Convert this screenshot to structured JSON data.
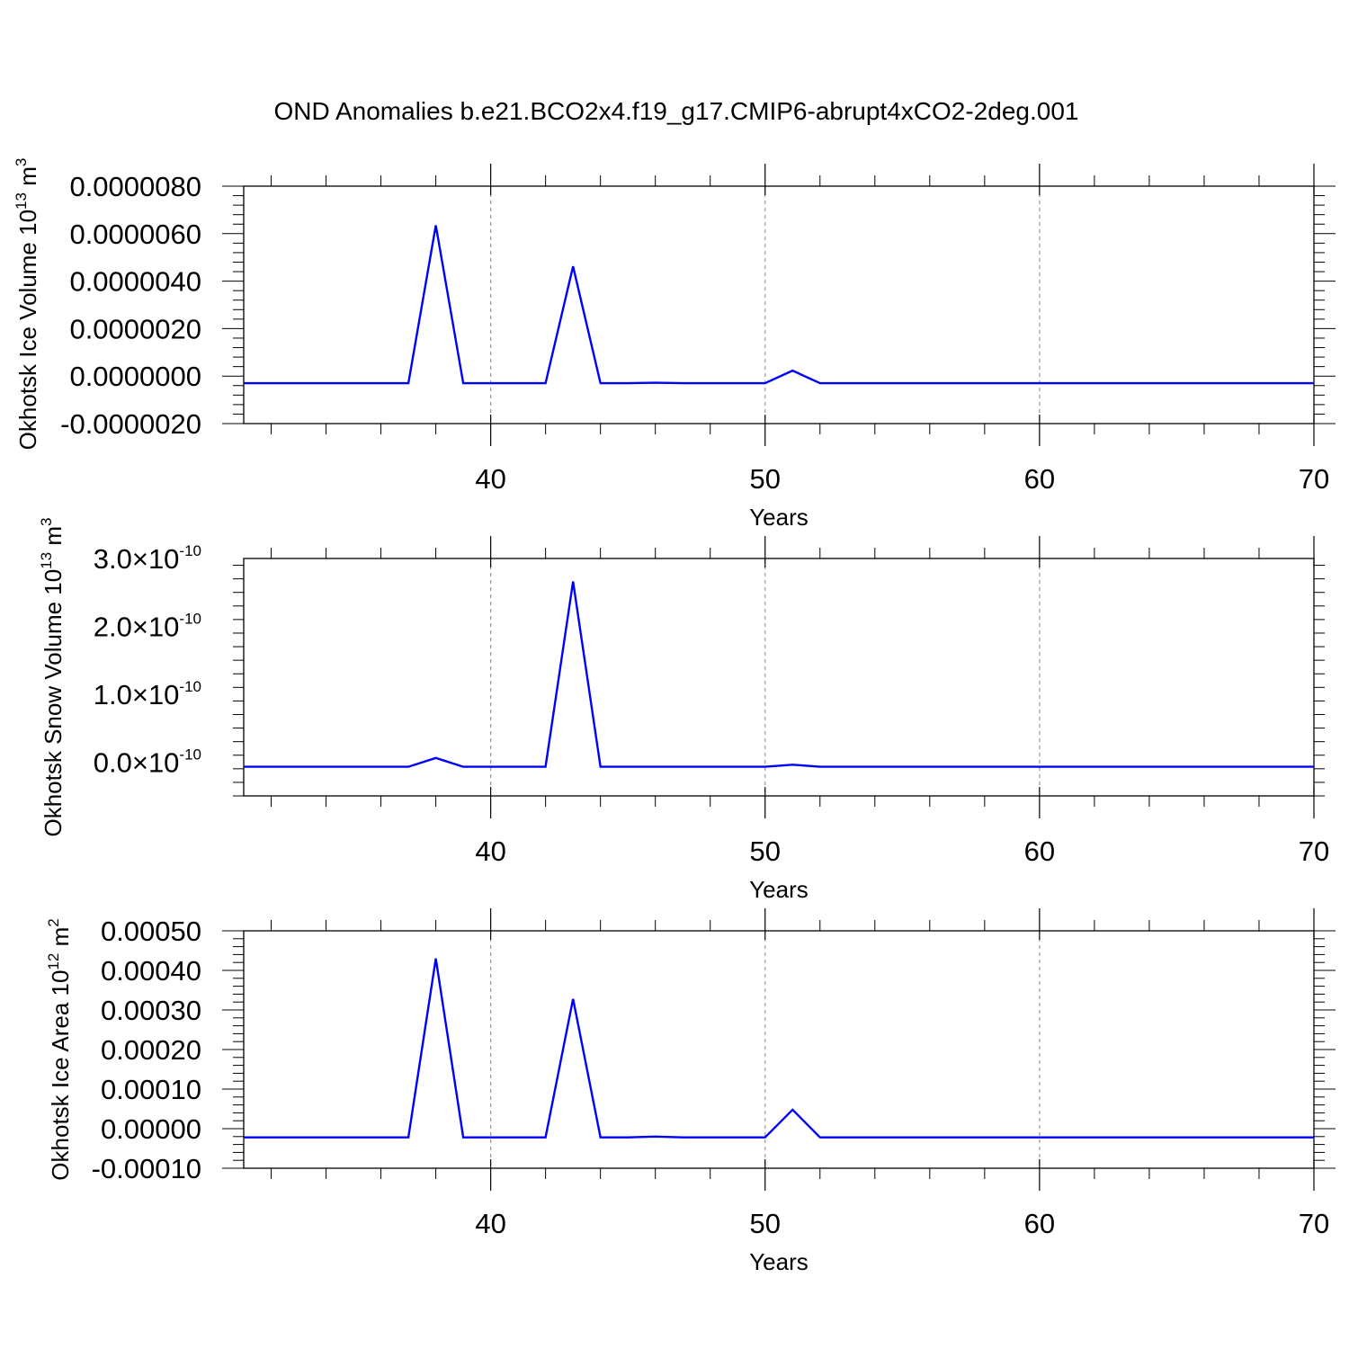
{
  "title": "OND Anomalies b.e21.BCO2x4.f19_g17.CMIP6-abrupt4xCO2-2deg.001",
  "colors": {
    "line": "#0000ff",
    "grid": "#999999",
    "frame": "#000000"
  },
  "chart_data": [
    {
      "type": "line",
      "xlabel": "Years",
      "ylabel": {
        "prefix": "Okhotsk Ice Volume 10",
        "exponent": "13",
        "unit": " m",
        "unit_exponent": "3"
      },
      "xlim": [
        31,
        70
      ],
      "ylim": [
        -2e-06,
        8e-06
      ],
      "x_ticks": [
        40,
        50,
        60,
        70
      ],
      "x_tick_labels": [
        "40",
        "50",
        "60",
        "70"
      ],
      "y_ticks": [
        -2e-06,
        0,
        2e-06,
        4e-06,
        6e-06,
        8e-06
      ],
      "y_tick_labels": [
        "-0.0000020",
        "0.0000000",
        "0.0000020",
        "0.0000040",
        "0.0000060",
        "0.0000080"
      ],
      "grid": "vertical dashed at major x ticks",
      "x": [
        31,
        32,
        33,
        34,
        35,
        36,
        37,
        38,
        39,
        40,
        41,
        42,
        43,
        44,
        45,
        46,
        47,
        48,
        49,
        50,
        51,
        52,
        53,
        54,
        55,
        56,
        57,
        58,
        59,
        60,
        61,
        62,
        63,
        64,
        65,
        66,
        67,
        68,
        69,
        70
      ],
      "values": [
        -3e-07,
        -3e-07,
        -3e-07,
        -3e-07,
        -3e-07,
        -3e-07,
        -3e-07,
        6.35e-06,
        -3e-07,
        -3e-07,
        -3e-07,
        -3e-07,
        4.62e-06,
        -3e-07,
        -3e-07,
        -2.8e-07,
        -3e-07,
        -3e-07,
        -3e-07,
        -3e-07,
        2.3e-07,
        -3e-07,
        -3e-07,
        -3e-07,
        -3e-07,
        -3e-07,
        -3e-07,
        -3e-07,
        -3e-07,
        -3e-07,
        -3e-07,
        -3e-07,
        -3e-07,
        -3e-07,
        -3e-07,
        -3e-07,
        -3e-07,
        -3e-07,
        -3e-07,
        -3e-07
      ]
    },
    {
      "type": "line",
      "xlabel": "Years",
      "ylabel": {
        "prefix": "Okhotsk Snow Volume 10",
        "exponent": "13",
        "unit": " m",
        "unit_exponent": "3"
      },
      "xlim": [
        31,
        70
      ],
      "ylim": [
        -5e-11,
        3e-10
      ],
      "x_ticks": [
        40,
        50,
        60,
        70
      ],
      "x_tick_labels": [
        "40",
        "50",
        "60",
        "70"
      ],
      "y_ticks": [
        0,
        1e-10,
        2e-10,
        3e-10
      ],
      "y_tick_labels": [
        {
          "mantissa": "0.0",
          "times": "×",
          "base": "10",
          "exponent": "-10"
        },
        {
          "mantissa": "1.0",
          "times": "×",
          "base": "10",
          "exponent": "-10"
        },
        {
          "mantissa": "2.0",
          "times": "×",
          "base": "10",
          "exponent": "-10"
        },
        {
          "mantissa": "3.0",
          "times": "×",
          "base": "10",
          "exponent": "-10"
        }
      ],
      "grid": "vertical dashed at major x ticks",
      "x": [
        31,
        32,
        33,
        34,
        35,
        36,
        37,
        38,
        39,
        40,
        41,
        42,
        43,
        44,
        45,
        46,
        47,
        48,
        49,
        50,
        51,
        52,
        53,
        54,
        55,
        56,
        57,
        58,
        59,
        60,
        61,
        62,
        63,
        64,
        65,
        66,
        67,
        68,
        69,
        70
      ],
      "values": [
        -7e-12,
        -7e-12,
        -7e-12,
        -7e-12,
        -7e-12,
        -7e-12,
        -7e-12,
        6e-12,
        -7e-12,
        -7e-12,
        -7e-12,
        -7e-12,
        2.66e-10,
        -7e-12,
        -7e-12,
        -7e-12,
        -7e-12,
        -7e-12,
        -7e-12,
        -7e-12,
        -4e-12,
        -7e-12,
        -7e-12,
        -7e-12,
        -7e-12,
        -7e-12,
        -7e-12,
        -7e-12,
        -7e-12,
        -7e-12,
        -7e-12,
        -7e-12,
        -7e-12,
        -7e-12,
        -7e-12,
        -7e-12,
        -7e-12,
        -7e-12,
        -7e-12,
        -7e-12
      ]
    },
    {
      "type": "line",
      "xlabel": "Years",
      "ylabel": {
        "prefix": "Okhotsk Ice Area 10",
        "exponent": "12",
        "unit": " m",
        "unit_exponent": "2"
      },
      "xlim": [
        31,
        70
      ],
      "ylim": [
        -0.0001,
        0.0005
      ],
      "x_ticks": [
        40,
        50,
        60,
        70
      ],
      "x_tick_labels": [
        "40",
        "50",
        "60",
        "70"
      ],
      "y_ticks": [
        -0.0001,
        0,
        0.0001,
        0.0002,
        0.0003,
        0.0004,
        0.0005
      ],
      "y_tick_labels": [
        "-0.00010",
        "0.00000",
        "0.00010",
        "0.00020",
        "0.00030",
        "0.00040",
        "0.00050"
      ],
      "grid": "vertical dashed at major x ticks",
      "x": [
        31,
        32,
        33,
        34,
        35,
        36,
        37,
        38,
        39,
        40,
        41,
        42,
        43,
        44,
        45,
        46,
        47,
        48,
        49,
        50,
        51,
        52,
        53,
        54,
        55,
        56,
        57,
        58,
        59,
        60,
        61,
        62,
        63,
        64,
        65,
        66,
        67,
        68,
        69,
        70
      ],
      "values": [
        -2.2e-05,
        -2.2e-05,
        -2.2e-05,
        -2.2e-05,
        -2.2e-05,
        -2.2e-05,
        -2.2e-05,
        0.00043,
        -2.2e-05,
        -2.2e-05,
        -2.2e-05,
        -2.2e-05,
        0.000328,
        -2.2e-05,
        -2.2e-05,
        -2e-05,
        -2.2e-05,
        -2.2e-05,
        -2.2e-05,
        -2.2e-05,
        4.8e-05,
        -2.2e-05,
        -2.2e-05,
        -2.2e-05,
        -2.2e-05,
        -2.2e-05,
        -2.2e-05,
        -2.2e-05,
        -2.2e-05,
        -2.2e-05,
        -2.2e-05,
        -2.2e-05,
        -2.2e-05,
        -2.2e-05,
        -2.2e-05,
        -2.2e-05,
        -2.2e-05,
        -2.2e-05,
        -2.2e-05,
        -2.2e-05
      ]
    }
  ]
}
